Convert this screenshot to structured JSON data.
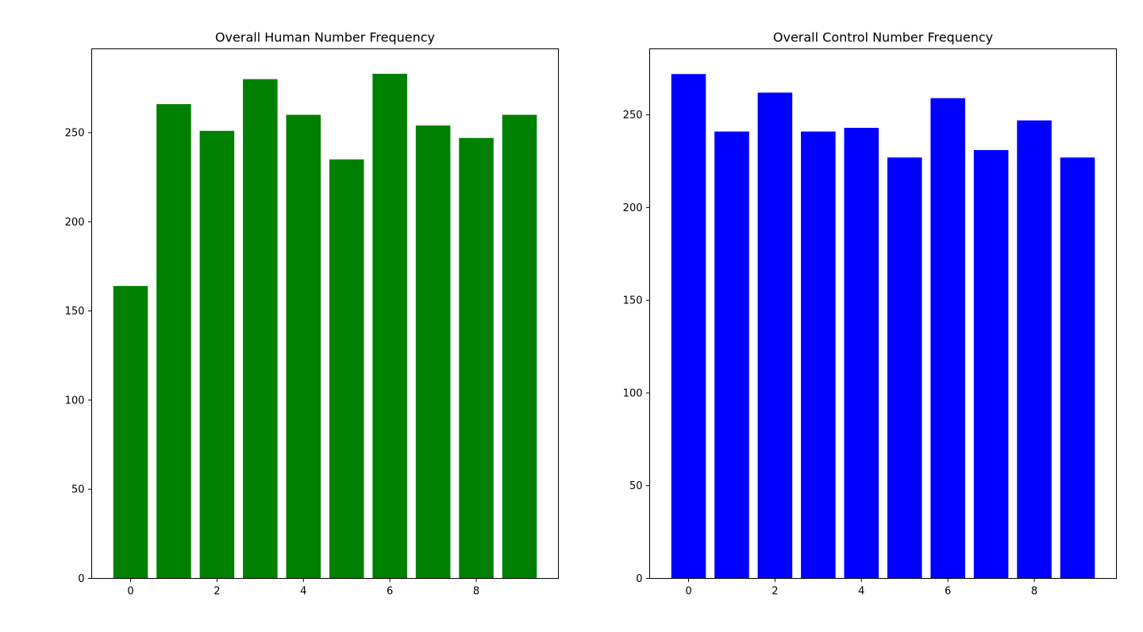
{
  "chart_data": [
    {
      "type": "bar",
      "title": "Overall Human Number Frequency",
      "xlabel": "",
      "ylabel": "",
      "categories": [
        0,
        1,
        2,
        3,
        4,
        5,
        6,
        7,
        8,
        9
      ],
      "values": [
        164,
        266,
        251,
        280,
        260,
        235,
        283,
        254,
        247,
        260
      ],
      "color": "#008000",
      "xlim": [
        -0.9,
        9.9
      ],
      "ylim": [
        0,
        297
      ],
      "xticks": [
        0,
        2,
        4,
        6,
        8
      ],
      "yticks": [
        0,
        50,
        100,
        150,
        200,
        250
      ],
      "grid": false
    },
    {
      "type": "bar",
      "title": "Overall Control Number Frequency",
      "xlabel": "",
      "ylabel": "",
      "categories": [
        0,
        1,
        2,
        3,
        4,
        5,
        6,
        7,
        8,
        9
      ],
      "values": [
        272,
        241,
        262,
        241,
        243,
        227,
        259,
        231,
        247,
        227
      ],
      "color": "#0000ff",
      "xlim": [
        -0.9,
        9.9
      ],
      "ylim": [
        0,
        285.6
      ],
      "xticks": [
        0,
        2,
        4,
        6,
        8
      ],
      "yticks": [
        0,
        50,
        100,
        150,
        200,
        250
      ],
      "grid": false
    }
  ]
}
